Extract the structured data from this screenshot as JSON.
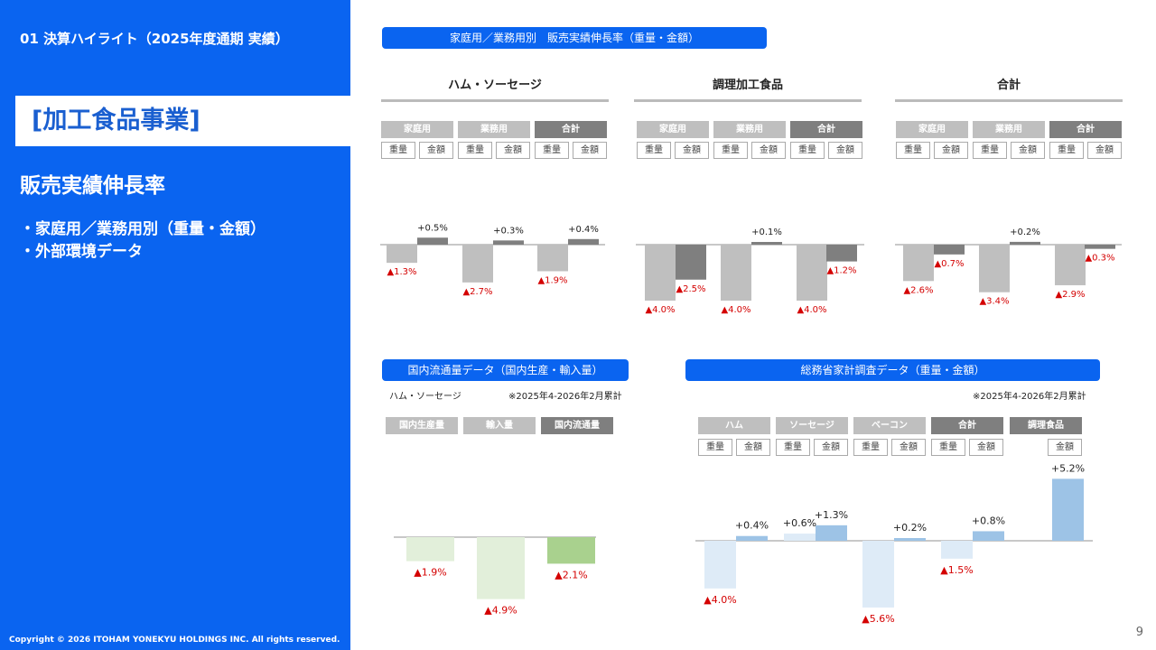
{
  "sidebar": {
    "breadcrumb": "01 決算ハイライト（2025年度通期 実績）",
    "section": "[加工食品事業]",
    "heading": "販売実績伸長率",
    "bullets": [
      "・家庭用／業務用別（重量・金額）",
      "・外部環境データ"
    ],
    "copyright": "Copyright © 2026 ITOHAM YONEKYU HOLDINGS INC. All rights reserved."
  },
  "top": {
    "pill": "家庭用／業務用別　販売実績伸長率（重量・金額）",
    "panels": [
      "ハム・ソーセージ",
      "調理加工食品",
      "合計"
    ],
    "groups": [
      "家庭用",
      "業務用",
      "合計"
    ],
    "subs": [
      "重量",
      "金額"
    ]
  },
  "bottom_left": {
    "pill": "国内流通量データ（国内生産・輸入量）",
    "caption": "ハム・ソーセージ",
    "note": "※2025年4-2026年2月累計",
    "groups": [
      "国内生産量",
      "輸入量",
      "国内流通量"
    ]
  },
  "bottom_right": {
    "pill": "総務省家計調査データ（重量・金額）",
    "note": "※2025年4-2026年2月累計",
    "groups": [
      "ハム",
      "ソーセージ",
      "ベーコン",
      "合計",
      "調理食品"
    ],
    "subs": [
      "重量",
      "金額"
    ],
    "last_sub": "金額"
  },
  "page_number": "9",
  "colors": {
    "accent": "#0a64f0",
    "negative_label": "#d40000",
    "light_gray": "#bfbfbf",
    "dark_gray": "#7f7f7f"
  },
  "chart_data": [
    {
      "type": "bar",
      "title": "ハム・ソーセージ",
      "categories": [
        "家庭用 重量",
        "家庭用 金額",
        "業務用 重量",
        "業務用 金額",
        "合計 重量",
        "合計 金額"
      ],
      "values": [
        -1.3,
        0.5,
        -2.7,
        0.3,
        -1.9,
        0.4
      ],
      "labels": [
        "▲1.3%",
        "+0.5%",
        "▲2.7%",
        "+0.3%",
        "▲1.9%",
        "+0.4%"
      ]
    },
    {
      "type": "bar",
      "title": "調理加工食品",
      "categories": [
        "家庭用 重量",
        "家庭用 金額",
        "業務用 重量",
        "業務用 金額",
        "合計 重量",
        "合計 金額"
      ],
      "values": [
        -4.0,
        -2.5,
        -4.0,
        0.1,
        -4.0,
        -1.2
      ],
      "labels": [
        "▲4.0%",
        "▲2.5%",
        "▲4.0%",
        "+0.1%",
        "▲4.0%",
        "▲1.2%"
      ]
    },
    {
      "type": "bar",
      "title": "合計",
      "categories": [
        "家庭用 重量",
        "家庭用 金額",
        "業務用 重量",
        "業務用 金額",
        "合計 重量",
        "合計 金額"
      ],
      "values": [
        -2.6,
        -0.7,
        -3.4,
        0.2,
        -2.9,
        -0.3
      ],
      "labels": [
        "▲2.6%",
        "▲0.7%",
        "▲3.4%",
        "+0.2%",
        "▲2.9%",
        "▲0.3%"
      ]
    },
    {
      "type": "bar",
      "title": "国内流通量データ（国内生産・輸入量）",
      "categories": [
        "国内生産量",
        "輸入量",
        "国内流通量"
      ],
      "values": [
        -1.9,
        -4.9,
        -2.1
      ],
      "labels": [
        "▲1.9%",
        "▲4.9%",
        "▲2.1%"
      ]
    },
    {
      "type": "bar",
      "title": "総務省家計調査データ（重量・金額）",
      "categories": [
        "ハム 重量",
        "ハム 金額",
        "ソーセージ 重量",
        "ソーセージ 金額",
        "ベーコン 重量",
        "ベーコン 金額",
        "合計 重量",
        "合計 金額",
        "調理食品 金額"
      ],
      "values": [
        -4.0,
        0.4,
        0.6,
        1.3,
        -5.6,
        0.2,
        -1.5,
        0.8,
        5.2
      ],
      "labels": [
        "▲4.0%",
        "+0.4%",
        "+0.6%",
        "+1.3%",
        "▲5.6%",
        "+0.2%",
        "▲1.5%",
        "+0.8%",
        "+5.2%"
      ]
    }
  ]
}
